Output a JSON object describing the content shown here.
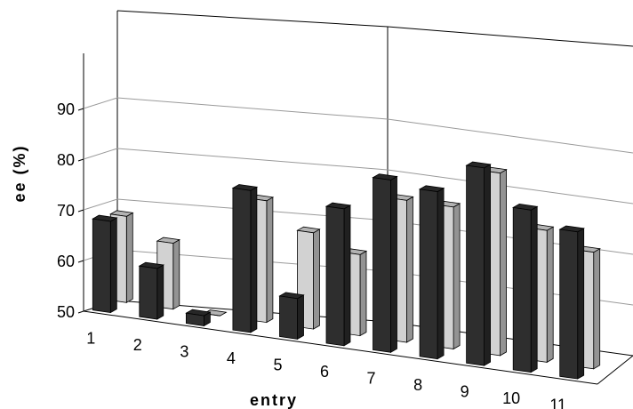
{
  "chart_data": {
    "type": "bar",
    "title": "",
    "xlabel": "entry",
    "ylabel": "ee (%)",
    "ylim": [
      50,
      95
    ],
    "yticks": [
      50,
      60,
      70,
      80,
      90
    ],
    "grid": true,
    "legend": "none",
    "categories": [
      "1",
      "2",
      "3",
      "4",
      "5",
      "6",
      "7",
      "8",
      "9",
      "10",
      "11"
    ],
    "series": [
      {
        "values": [
          68,
          60,
          52,
          78,
          58,
          77,
          84,
          83,
          89,
          82,
          79
        ]
      },
      {
        "values": [
          67,
          63,
          50,
          74,
          69,
          66,
          78,
          78,
          86,
          76,
          73
        ]
      }
    ],
    "colors": {
      "series_0": "#2e2e2e",
      "series_1": "#d2d2d2",
      "gridline": "#9a9a9a",
      "frame": "#000000"
    }
  }
}
